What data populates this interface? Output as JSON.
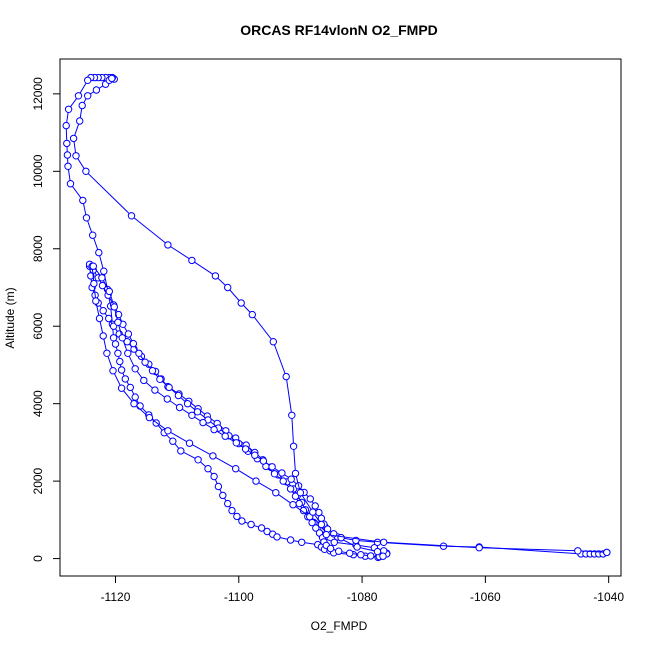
{
  "chart_data": {
    "type": "scatter",
    "title": "ORCAS RF14vlonN O2_FMPD",
    "xlabel": "O2_FMPD",
    "ylabel": "Altitude (m)",
    "xlim": [
      -1129,
      -1038
    ],
    "ylim": [
      -450,
      12900
    ],
    "xticks": [
      -1120,
      -1100,
      -1080,
      -1060,
      -1040
    ],
    "xtick_labels": [
      "-1120",
      "-1100",
      "-1080",
      "-1060",
      "-1040"
    ],
    "yticks": [
      0,
      2000,
      4000,
      6000,
      8000,
      10000,
      12000
    ],
    "ytick_labels": [
      "0",
      "2000",
      "4000",
      "6000",
      "8000",
      "10000",
      "12000"
    ],
    "grid": false,
    "legend": "none",
    "color": "#0000ff",
    "series": [
      {
        "x": [
          -1120.2,
          -1120.5,
          -1121.0,
          -1121.6,
          -1122.2,
          -1122.8,
          -1123.4,
          -1124.0,
          -1124.5,
          -1126.0,
          -1127.6,
          -1128.0,
          -1127.9,
          -1127.8,
          -1127.7,
          -1127.3,
          -1125.3,
          -1124.7,
          -1123.7,
          -1122.7,
          -1121.9,
          -1121.3,
          -1120.8,
          -1120.5,
          -1120.3,
          -1120.0,
          -1119.6,
          -1119.3,
          -1119.0,
          -1118.4,
          -1117.6,
          -1116.8,
          -1116.0,
          -1114.6,
          -1113.4,
          -1112.1,
          -1110.7,
          -1109.4,
          -1106.6,
          -1105.0,
          -1104.0,
          -1103.3,
          -1102.6,
          -1101.8,
          -1101.1,
          -1100.3,
          -1099.5,
          -1098.0,
          -1096.3,
          -1095.4,
          -1094.5,
          -1093.8,
          -1091.6,
          -1089.8,
          -1087.2,
          -1086.6,
          -1086.1,
          -1085.2,
          -1084.6,
          -1081.4,
          -1079.5,
          -1077.4,
          -1077.0,
          -1076.5,
          -1076.2,
          -1076.0
        ],
        "y": [
          12380,
          12420,
          12420,
          12420,
          12420,
          12420,
          12420,
          12420,
          12350,
          11950,
          11600,
          11180,
          10720,
          10420,
          10130,
          9680,
          9250,
          8800,
          8350,
          7900,
          7420,
          6950,
          6520,
          6050,
          5700,
          5540,
          5300,
          5090,
          4870,
          4640,
          4420,
          4170,
          3940,
          3710,
          3500,
          3250,
          3030,
          2780,
          2550,
          2320,
          2120,
          1860,
          1630,
          1420,
          1240,
          1090,
          970,
          880,
          790,
          700,
          630,
          560,
          480,
          420,
          360,
          300,
          240,
          200,
          150,
          100,
          60,
          30,
          60,
          100,
          120,
          140
        ]
      },
      {
        "x": [
          -1076.0,
          -1076.5,
          -1078.0,
          -1081.0,
          -1084.5,
          -1086.2,
          -1086.6,
          -1087.2,
          -1087.8,
          -1088.5,
          -1089.2,
          -1089.8,
          -1090.5,
          -1091.1,
          -1092.2,
          -1093.6,
          -1094.8,
          -1096.1,
          -1097.4,
          -1098.8,
          -1100.5,
          -1102.1,
          -1103.5,
          -1105.1,
          -1106.6,
          -1108.1,
          -1109.7,
          -1111.5,
          -1112.6,
          -1113.5,
          -1114.6,
          -1115.8,
          -1117.0,
          -1118.1,
          -1119.4,
          -1120.3,
          -1121.1,
          -1122.0,
          -1122.8,
          -1123.3,
          -1123.8,
          -1124.0,
          -1124.2
        ],
        "y": [
          120,
          200,
          280,
          350,
          420,
          520,
          620,
          780,
          930,
          1100,
          1260,
          1450,
          1620,
          1800,
          1980,
          2160,
          2360,
          2550,
          2740,
          2930,
          3110,
          3300,
          3490,
          3680,
          3870,
          4060,
          4250,
          4440,
          4640,
          4830,
          5020,
          5220,
          5410,
          5600,
          5800,
          6000,
          6200,
          6400,
          6600,
          6800,
          7000,
          7300,
          7550
        ]
      },
      {
        "x": [
          -1124.2,
          -1123.6,
          -1122.8,
          -1122.1,
          -1121.2,
          -1120.3,
          -1119.5,
          -1118.8,
          -1117.9,
          -1117.1,
          -1116.2,
          -1115.2,
          -1114.0,
          -1112.8,
          -1111.3,
          -1109.8,
          -1108.3,
          -1106.7,
          -1105.0,
          -1103.3,
          -1101.6,
          -1100.0,
          -1098.5,
          -1097.0,
          -1095.6,
          -1094.2,
          -1092.8,
          -1091.6,
          -1090.8,
          -1090.2,
          -1089.5,
          -1088.8,
          -1088.1,
          -1087.5,
          -1086.9,
          -1086.4,
          -1086.2,
          -1085.8,
          -1085.1,
          -1083.8,
          -1082.0,
          -1080.2,
          -1078.6,
          -1077.2
        ],
        "y": [
          7600,
          7450,
          7250,
          7050,
          6800,
          6550,
          6300,
          6050,
          5800,
          5550,
          5300,
          5070,
          4850,
          4630,
          4420,
          4210,
          4000,
          3790,
          3580,
          3370,
          3170,
          2970,
          2770,
          2580,
          2380,
          2190,
          2000,
          1800,
          1610,
          1420,
          1240,
          1080,
          930,
          790,
          660,
          540,
          430,
          340,
          260,
          190,
          140,
          100,
          70,
          50
        ]
      },
      {
        "x": [
          -1076.6,
          -1077.5,
          -1080.8,
          -1084.0,
          -1086.0,
          -1088.5,
          -1091.2,
          -1094.0,
          -1097.2,
          -1100.5,
          -1104.2,
          -1108.0,
          -1111.5,
          -1114.5,
          -1117.0,
          -1119.0,
          -1120.4,
          -1121.4,
          -1122.0,
          -1122.6,
          -1123.2,
          -1123.5,
          -1123.8
        ],
        "y": [
          60,
          180,
          300,
          560,
          820,
          1080,
          1390,
          1700,
          2000,
          2320,
          2650,
          2980,
          3300,
          3640,
          4000,
          4400,
          4850,
          5300,
          5750,
          6200,
          6650,
          7100,
          7550
        ]
      },
      {
        "x": [
          -1123.6,
          -1122.2,
          -1121.0,
          -1120.2,
          -1119.6,
          -1118.9,
          -1118.0,
          -1116.8,
          -1115.4,
          -1113.6,
          -1111.6,
          -1109.6,
          -1107.6,
          -1105.8,
          -1104.0,
          -1102.2,
          -1100.4,
          -1098.9,
          -1097.4,
          -1096.0,
          -1094.6,
          -1093.0,
          -1091.5,
          -1090.3,
          -1089.4,
          -1088.4,
          -1087.6,
          -1087.0,
          -1086.6,
          -1086.2,
          -1085.6,
          -1084.6,
          -1083.4
        ],
        "y": [
          7550,
          7250,
          6900,
          6500,
          6100,
          5700,
          5300,
          4900,
          4600,
          4350,
          4120,
          3900,
          3700,
          3510,
          3330,
          3160,
          2990,
          2830,
          2670,
          2520,
          2370,
          2210,
          2050,
          1880,
          1710,
          1540,
          1360,
          1190,
          1040,
          890,
          760,
          640,
          540
        ]
      },
      {
        "x": [
          -1083.4,
          -1081.0,
          -1077.5,
          -1066.8,
          -1061.0,
          -1044.5,
          -1043.7,
          -1043.0,
          -1042.3,
          -1041.6,
          -1040.9,
          -1040.3
        ],
        "y": [
          540,
          470,
          420,
          320,
          300,
          120,
          120,
          120,
          120,
          120,
          120,
          160
        ]
      },
      {
        "x": [
          -1040.3,
          -1045.0,
          -1061.0,
          -1076.5,
          -1085.8,
          -1086.6,
          -1088.0,
          -1090.0,
          -1090.8,
          -1091.1,
          -1091.4,
          -1092.3,
          -1094.4,
          -1097.8,
          -1099.6,
          -1101.8,
          -1103.8,
          -1107.6,
          -1111.5,
          -1117.4,
          -1124.8,
          -1126.4,
          -1126.8,
          -1125.8,
          -1125.4,
          -1124.5,
          -1123.1,
          -1121.6,
          -1121.0,
          -1120.6
        ],
        "y": [
          160,
          200,
          280,
          420,
          620,
          880,
          1200,
          1700,
          2200,
          2900,
          3700,
          4700,
          5600,
          6300,
          6600,
          7000,
          7300,
          7700,
          8100,
          8850,
          10000,
          10400,
          10850,
          11300,
          11700,
          11950,
          12100,
          12250,
          12350,
          12400
        ]
      }
    ]
  }
}
